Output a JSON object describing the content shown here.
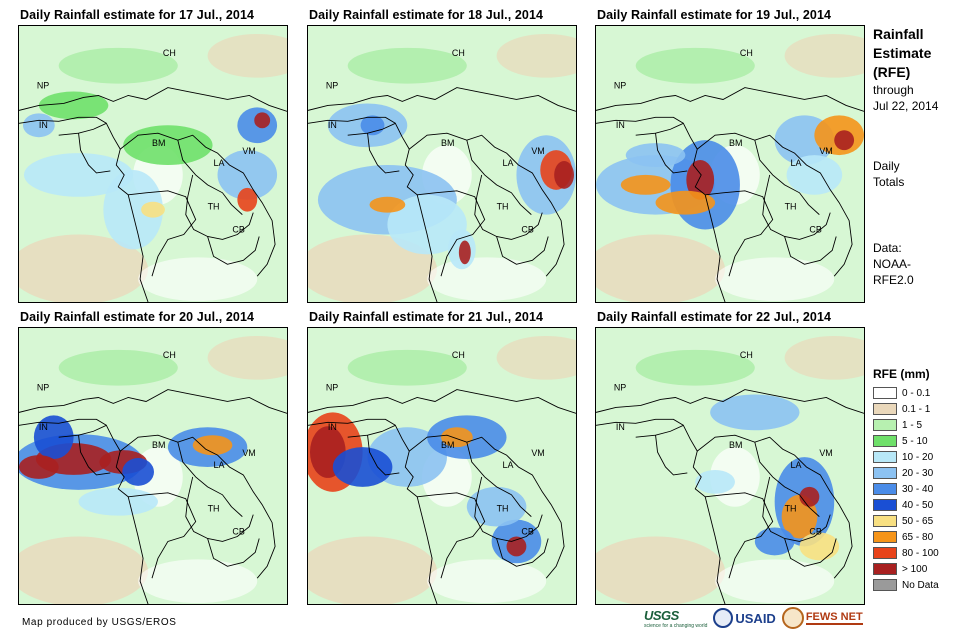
{
  "panels": [
    {
      "title": "Daily Rainfall estimate for 17 Jul., 2014"
    },
    {
      "title": "Daily Rainfall estimate for 18 Jul., 2014"
    },
    {
      "title": "Daily Rainfall estimate for 19 Jul., 2014"
    },
    {
      "title": "Daily Rainfall estimate for 20 Jul., 2014"
    },
    {
      "title": "Daily Rainfall estimate for 21 Jul., 2014"
    },
    {
      "title": "Daily Rainfall estimate for 22 Jul., 2014"
    }
  ],
  "country_labels": [
    "CH",
    "NP",
    "IN",
    "BM",
    "LA",
    "VM",
    "TH",
    "CB"
  ],
  "side": {
    "title_line1": "Rainfall",
    "title_line2": "Estimate",
    "title_line3": "(RFE)",
    "through": "through",
    "date": "Jul 22, 2014",
    "daily": "Daily",
    "totals": "Totals",
    "data_label": "Data:",
    "data_src1": "NOAA-",
    "data_src2": "RFE2.0"
  },
  "legend": {
    "title": "RFE (mm)",
    "items": [
      {
        "label": "0 - 0.1",
        "color": "#ffffff"
      },
      {
        "label": "0.1 - 1",
        "color": "#ead8bb"
      },
      {
        "label": "1 - 5",
        "color": "#b7f0b0"
      },
      {
        "label": "5 - 10",
        "color": "#6fe06a"
      },
      {
        "label": "10 - 20",
        "color": "#b8e8f8"
      },
      {
        "label": "20 - 30",
        "color": "#8cc2f2"
      },
      {
        "label": "30 - 40",
        "color": "#4a8ce8"
      },
      {
        "label": "40 - 50",
        "color": "#1a4fd4"
      },
      {
        "label": "50 - 65",
        "color": "#f8e082"
      },
      {
        "label": "65 - 80",
        "color": "#f59419"
      },
      {
        "label": "80 - 100",
        "color": "#e8431a"
      },
      {
        "label": "> 100",
        "color": "#a82020"
      },
      {
        "label": "No Data",
        "color": "#9a9a9a"
      }
    ]
  },
  "footer": {
    "credit": "Map produced by USGS/EROS"
  },
  "logos": {
    "usgs": "USGS",
    "usgs_tag": "science for a changing world",
    "usaid": "USAID",
    "fews": "FEWS NET"
  }
}
